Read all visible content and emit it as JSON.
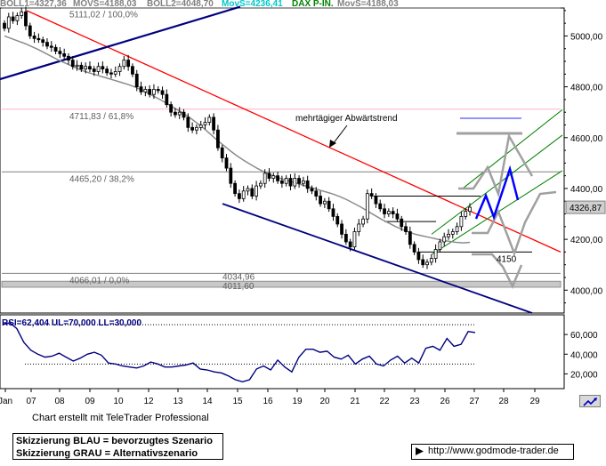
{
  "header": {
    "boll1": "BOLL1=4327,36",
    "movs1": "MOVS=4188,03",
    "boll2": "BOLL2=4048,70",
    "movs_cyan": "MovS=4236,41",
    "dax": "DAX P-IN.",
    "movs2": "MovS=4188,03"
  },
  "colors": {
    "candles": "#000000",
    "moving_average": "#8c8c8c",
    "trend_red": "#ff0000",
    "trend_navy": "#00007f",
    "channel_green": "#008000",
    "scenario_blue": "#0000ff",
    "scenario_gray": "#a0a0a0",
    "header_cyan": "#00c8c8",
    "header_green": "#008000"
  },
  "chart_data": [
    {
      "type": "candlestick",
      "title": "",
      "y_ticks": [
        "5000,00",
        "4800,00",
        "4600,00",
        "4400,00",
        "4200,00",
        "4000,00"
      ],
      "ylim": [
        3910,
        5110
      ],
      "x_ticks": [
        "Jan",
        "07",
        "08",
        "09",
        "10",
        "12",
        "13",
        "14",
        "15",
        "16",
        "19",
        "20",
        "21",
        "22",
        "23",
        "26",
        "27",
        "28",
        "29"
      ],
      "last_price_label": "4326,87",
      "fib_levels": [
        {
          "label": "5111,02 / 100,0%",
          "value": 5111.02
        },
        {
          "label": "4711,83 / 61,8%",
          "value": 4711.83
        },
        {
          "label": "4465,20 / 38,2%",
          "value": 4465.2
        },
        {
          "label": "4066,01 / 0,0%",
          "value": 4066.01
        }
      ],
      "price_labels": [
        {
          "label": "4034,96",
          "value": 4034.96
        },
        {
          "label": "4011,60",
          "value": 4011.6
        },
        {
          "label": "4150",
          "value": 4150
        }
      ],
      "annotation": "mehrtägiger Abwärtstrend",
      "series": [
        {
          "values": [
            5030,
            5075,
            5060,
            5080,
            5095,
            5040,
            5000,
            4990,
            4985,
            4975,
            4960,
            4955,
            4940,
            4930,
            4920,
            4905,
            4880,
            4885,
            4870,
            4880,
            4870,
            4860,
            4880,
            4870,
            4855,
            4850,
            4860,
            4880,
            4905,
            4880,
            4850,
            4800,
            4780,
            4790,
            4770,
            4790,
            4785,
            4770,
            4730,
            4700,
            4690,
            4700,
            4680,
            4640,
            4630,
            4640,
            4650,
            4660,
            4680,
            4630,
            4560,
            4520,
            4480,
            4420,
            4380,
            4360,
            4390,
            4400,
            4370,
            4410,
            4420,
            4460,
            4440,
            4450,
            4430,
            4420,
            4440,
            4410,
            4440,
            4420,
            4430,
            4400,
            4390,
            4370,
            4340,
            4350,
            4320,
            4290,
            4260,
            4220,
            4190,
            4170,
            4230,
            4260,
            4280,
            4380,
            4370,
            4340,
            4320,
            4300,
            4310,
            4300,
            4280,
            4250,
            4230,
            4180,
            4150,
            4120,
            4100,
            4110,
            4125,
            4160,
            4190,
            4210,
            4220,
            4230,
            4250,
            4290,
            4310,
            4326
          ]
        },
        {
          "name": "MOVS",
          "values": [
            5000,
            4990,
            4980,
            4970,
            4958,
            4946,
            4932,
            4918,
            4904,
            4892,
            4880,
            4868,
            4858,
            4850,
            4842,
            4834,
            4826,
            4818,
            4810,
            4800,
            4788,
            4774,
            4760,
            4746,
            4730,
            4714,
            4698,
            4680,
            4660,
            4640,
            4616,
            4592,
            4570,
            4548,
            4528,
            4510,
            4494,
            4478,
            4464,
            4452,
            4442,
            4434,
            4426,
            4418,
            4410,
            4402,
            4394,
            4386,
            4378,
            4368,
            4356,
            4342,
            4328,
            4312,
            4296,
            4280,
            4266,
            4252,
            4240,
            4230,
            4220,
            4214,
            4208,
            4202,
            4196,
            4192,
            4188,
            4186,
            4188
          ]
        }
      ]
    },
    {
      "type": "line",
      "title": "RSI=62,404 UL=70,000 LL=30,000",
      "y_ticks": [
        "60,000",
        "40,000",
        "20,000"
      ],
      "ylim": [
        5,
        80
      ],
      "upper_line": 70,
      "lower_line": 30,
      "series": [
        {
          "name": "RSI",
          "values": [
            70,
            72,
            66,
            52,
            44,
            40,
            37,
            38,
            41,
            37,
            33,
            36,
            40,
            42,
            39,
            31,
            30,
            28,
            27,
            26,
            28,
            32,
            30,
            27,
            27,
            28,
            29,
            31,
            25,
            24,
            22,
            21,
            18,
            14,
            12,
            14,
            25,
            28,
            24,
            34,
            27,
            22,
            37,
            45,
            45,
            42,
            43,
            37,
            35,
            39,
            30,
            35,
            38,
            30,
            28,
            34,
            38,
            31,
            36,
            31,
            46,
            48,
            44,
            56,
            48,
            50,
            63,
            62
          ]
        }
      ]
    }
  ],
  "footer": {
    "credit": "Chart erstellt mit TeleTrader Professional",
    "legend_line1": "Skizzierung BLAU = bevorzugtes Szenario",
    "legend_line2": "Skizzierung GRAU = Alternativszenario",
    "url": "http://www.godmode-trader.de"
  }
}
